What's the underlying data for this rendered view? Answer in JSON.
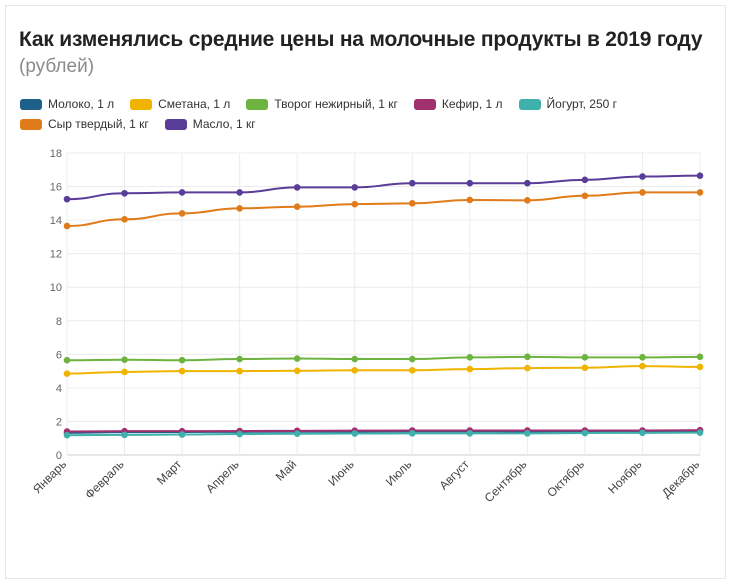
{
  "chart_data": {
    "type": "line",
    "title": "Как изменялись средние цены на молочные продукты в 2019 году",
    "subtitle": "(рублей)",
    "xlabel": "",
    "ylabel": "",
    "ylim": [
      0,
      18
    ],
    "yticks": [
      0,
      2,
      4,
      6,
      8,
      10,
      12,
      14,
      16,
      18
    ],
    "grid": true,
    "legend_position": "top-left",
    "categories": [
      "Январь",
      "Февраль",
      "Март",
      "Апрель",
      "Май",
      "Июнь",
      "Июль",
      "Август",
      "Сентябрь",
      "Октябрь",
      "Ноябрь",
      "Декабрь"
    ],
    "series": [
      {
        "name": "Молоко, 1 л",
        "color": "#1f5f8b",
        "values": [
          1.32,
          1.36,
          1.37,
          1.38,
          1.39,
          1.4,
          1.41,
          1.41,
          1.4,
          1.41,
          1.42,
          1.43
        ]
      },
      {
        "name": "Сметана, 1 л",
        "color": "#f0b400",
        "values": [
          4.85,
          4.95,
          5.0,
          5.0,
          5.02,
          5.05,
          5.05,
          5.12,
          5.18,
          5.2,
          5.3,
          5.25
        ]
      },
      {
        "name": "Творог нежирный, 1 кг",
        "color": "#6db33f",
        "values": [
          5.65,
          5.68,
          5.65,
          5.72,
          5.75,
          5.72,
          5.72,
          5.82,
          5.85,
          5.82,
          5.82,
          5.85
        ]
      },
      {
        "name": "Кефир, 1 л",
        "color": "#a0306e",
        "values": [
          1.4,
          1.42,
          1.42,
          1.43,
          1.44,
          1.45,
          1.46,
          1.46,
          1.46,
          1.46,
          1.46,
          1.48
        ]
      },
      {
        "name": "Йогурт, 250 г",
        "color": "#3fb0ac",
        "values": [
          1.18,
          1.2,
          1.22,
          1.25,
          1.27,
          1.28,
          1.29,
          1.29,
          1.29,
          1.31,
          1.32,
          1.33
        ]
      },
      {
        "name": "Сыр твердый, 1 кг",
        "color": "#e07b1a",
        "values": [
          13.65,
          14.05,
          14.4,
          14.7,
          14.8,
          14.95,
          15.0,
          15.2,
          15.18,
          15.45,
          15.65,
          15.65
        ]
      },
      {
        "name": "Масло, 1 кг",
        "color": "#5a3d99",
        "values": [
          15.25,
          15.6,
          15.65,
          15.65,
          15.95,
          15.95,
          16.2,
          16.2,
          16.2,
          16.4,
          16.6,
          16.65
        ]
      }
    ]
  }
}
